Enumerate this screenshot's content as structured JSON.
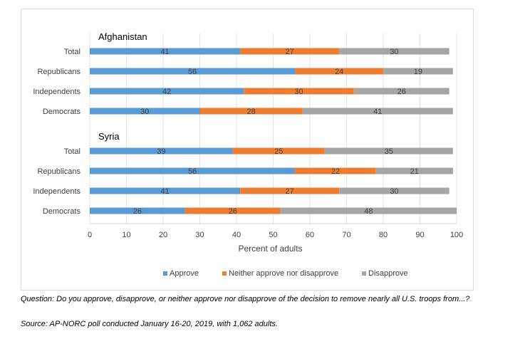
{
  "chart_data": {
    "type": "bar",
    "orientation": "horizontal",
    "stacked": true,
    "groups": [
      {
        "title": "Afghanistan",
        "categories": [
          "Total",
          "Republicans",
          "Independents",
          "Democrats"
        ],
        "series": [
          {
            "name": "Approve",
            "values": [
              41,
              56,
              42,
              30
            ]
          },
          {
            "name": "Neither approve nor disapprove",
            "values": [
              27,
              24,
              30,
              28
            ]
          },
          {
            "name": "Disapprove",
            "values": [
              30,
              19,
              26,
              41
            ]
          }
        ]
      },
      {
        "title": "Syria",
        "categories": [
          "Total",
          "Republicans",
          "Independents",
          "Democrats"
        ],
        "series": [
          {
            "name": "Approve",
            "values": [
              39,
              56,
              41,
              26
            ]
          },
          {
            "name": "Neither approve nor disapprove",
            "values": [
              25,
              22,
              27,
              26
            ]
          },
          {
            "name": "Disapprove",
            "values": [
              35,
              21,
              30,
              48
            ]
          }
        ]
      }
    ],
    "xlabel": "Percent of adults",
    "xlim": [
      0,
      100
    ],
    "xticks": [
      0,
      10,
      20,
      30,
      40,
      50,
      60,
      70,
      80,
      90,
      100
    ],
    "legend": {
      "position": "bottom",
      "items": [
        "Approve",
        "Neither approve nor disapprove",
        "Disapprove"
      ]
    },
    "colors": [
      "#5b9bd5",
      "#ed7d31",
      "#a5a5a5"
    ],
    "grid": true
  },
  "notes": {
    "question": "Question: Do you approve, disapprove, or neither approve nor disapprove of the decision to remove nearly all U.S. troops from...?",
    "source": "Source: AP-NORC poll conducted January 16-20, 2019, with 1,062 adults."
  }
}
